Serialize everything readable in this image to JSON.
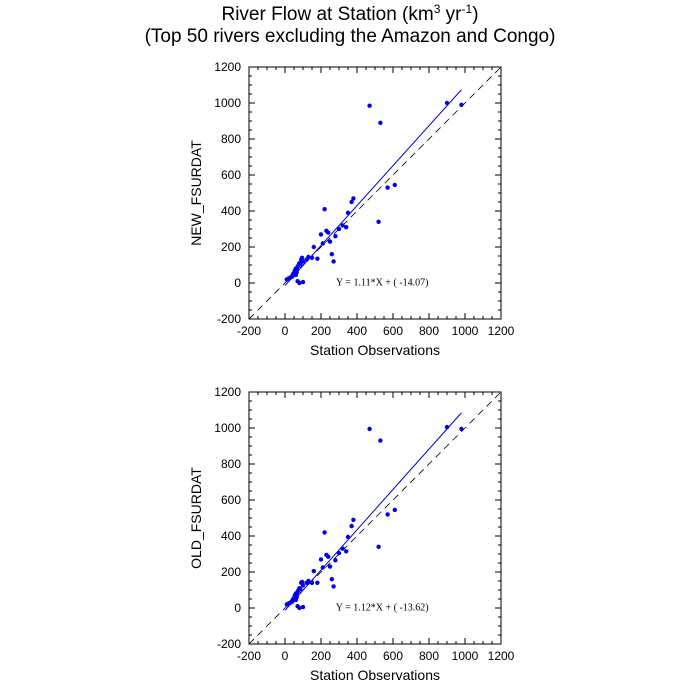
{
  "title": {
    "main": "River Flow at Station (km",
    "sup1": "3",
    "mid": " yr",
    "sup2": "-1",
    "end": ")",
    "subtitle": "(Top 50 rivers excluding the Amazon and Congo)"
  },
  "colors": {
    "points": "#0000ee",
    "fit": "#0000cc",
    "one_to_one": "#000000"
  },
  "chart_data": [
    {
      "type": "scatter",
      "xlabel": "Station Observations",
      "ylabel": "NEW_FSURDAT",
      "xlim": [
        -200,
        1200
      ],
      "ylim": [
        -200,
        1200
      ],
      "xticks": [
        -200,
        0,
        200,
        400,
        600,
        800,
        1000,
        1200
      ],
      "yticks": [
        -200,
        0,
        200,
        400,
        600,
        800,
        1000,
        1200
      ],
      "fit": {
        "slope": 1.11,
        "intercept": -14.07,
        "x_range": [
          0,
          980
        ],
        "label": "Y =  1.11*X + (  -14.07)"
      },
      "one_to_one_line": true,
      "points": [
        [
          10,
          20
        ],
        [
          20,
          25
        ],
        [
          30,
          30
        ],
        [
          40,
          40
        ],
        [
          45,
          50
        ],
        [
          50,
          55
        ],
        [
          55,
          70
        ],
        [
          60,
          80
        ],
        [
          65,
          60
        ],
        [
          70,
          90
        ],
        [
          75,
          100
        ],
        [
          80,
          110
        ],
        [
          85,
          105
        ],
        [
          90,
          130
        ],
        [
          95,
          140
        ],
        [
          80,
          0
        ],
        [
          100,
          5
        ],
        [
          70,
          10
        ],
        [
          120,
          130
        ],
        [
          150,
          140
        ],
        [
          160,
          200
        ],
        [
          180,
          135
        ],
        [
          200,
          270
        ],
        [
          210,
          220
        ],
        [
          220,
          410
        ],
        [
          230,
          290
        ],
        [
          250,
          230
        ],
        [
          260,
          160
        ],
        [
          270,
          120
        ],
        [
          280,
          260
        ],
        [
          300,
          300
        ],
        [
          320,
          320
        ],
        [
          340,
          310
        ],
        [
          350,
          390
        ],
        [
          370,
          450
        ],
        [
          380,
          470
        ],
        [
          470,
          985
        ],
        [
          520,
          340
        ],
        [
          530,
          890
        ],
        [
          570,
          530
        ],
        [
          610,
          545
        ],
        [
          900,
          1000
        ],
        [
          980,
          990
        ],
        [
          60,
          45
        ],
        [
          40,
          35
        ],
        [
          100,
          120
        ],
        [
          130,
          145
        ],
        [
          240,
          280
        ],
        [
          65,
          75
        ],
        [
          55,
          65
        ]
      ]
    },
    {
      "type": "scatter",
      "xlabel": "Station Observations",
      "ylabel": "OLD_FSURDAT",
      "xlim": [
        -200,
        1200
      ],
      "ylim": [
        -200,
        1200
      ],
      "xticks": [
        -200,
        0,
        200,
        400,
        600,
        800,
        1000,
        1200
      ],
      "yticks": [
        -200,
        0,
        200,
        400,
        600,
        800,
        1000,
        1200
      ],
      "fit": {
        "slope": 1.12,
        "intercept": -13.62,
        "x_range": [
          0,
          980
        ],
        "label": "Y =  1.12*X + (  -13.62)"
      },
      "one_to_one_line": true,
      "points": [
        [
          10,
          20
        ],
        [
          20,
          25
        ],
        [
          30,
          30
        ],
        [
          40,
          40
        ],
        [
          45,
          50
        ],
        [
          50,
          55
        ],
        [
          55,
          70
        ],
        [
          60,
          80
        ],
        [
          65,
          60
        ],
        [
          70,
          90
        ],
        [
          75,
          100
        ],
        [
          80,
          110
        ],
        [
          85,
          105
        ],
        [
          90,
          140
        ],
        [
          95,
          145
        ],
        [
          80,
          0
        ],
        [
          100,
          5
        ],
        [
          70,
          10
        ],
        [
          120,
          140
        ],
        [
          150,
          140
        ],
        [
          160,
          205
        ],
        [
          180,
          140
        ],
        [
          200,
          270
        ],
        [
          210,
          225
        ],
        [
          220,
          420
        ],
        [
          230,
          295
        ],
        [
          250,
          230
        ],
        [
          260,
          160
        ],
        [
          270,
          120
        ],
        [
          280,
          265
        ],
        [
          300,
          305
        ],
        [
          320,
          330
        ],
        [
          340,
          315
        ],
        [
          350,
          395
        ],
        [
          370,
          455
        ],
        [
          380,
          490
        ],
        [
          470,
          995
        ],
        [
          520,
          340
        ],
        [
          530,
          930
        ],
        [
          570,
          520
        ],
        [
          610,
          545
        ],
        [
          900,
          1005
        ],
        [
          980,
          995
        ],
        [
          60,
          45
        ],
        [
          40,
          35
        ],
        [
          100,
          125
        ],
        [
          130,
          150
        ],
        [
          240,
          285
        ],
        [
          65,
          75
        ],
        [
          55,
          65
        ]
      ]
    }
  ]
}
